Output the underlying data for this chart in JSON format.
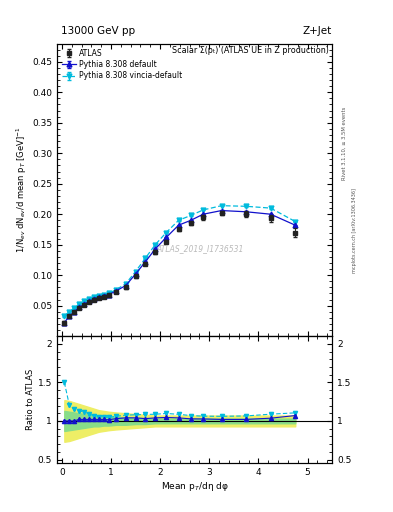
{
  "title_left": "13000 GeV pp",
  "title_right": "Z+Jet",
  "right_label": "Rivet 3.1.10, ≥ 3.5M events",
  "right_label2": "mcplots.cern.ch [arXiv:1306.3436]",
  "plot_title": "Scalar Σ(pₜ) (ATLAS UE in Z production)",
  "ylabel_main": "1/N$_{ev}$ dN$_{ev}$/d mean p$_T$ [GeV]$^{-1}$",
  "ylabel_ratio": "Ratio to ATLAS",
  "xlabel": "Mean p$_{T}$/dη dφ",
  "watermark": "ATLAS_2019_I1736531",
  "ylim_main": [
    0.0,
    0.48
  ],
  "ylim_ratio": [
    0.45,
    2.1
  ],
  "xlim": [
    -0.1,
    5.5
  ],
  "atlas_x": [
    0.05,
    0.15,
    0.25,
    0.35,
    0.45,
    0.55,
    0.65,
    0.75,
    0.85,
    0.95,
    1.1,
    1.3,
    1.5,
    1.7,
    1.9,
    2.125,
    2.375,
    2.625,
    2.875,
    3.25,
    3.75,
    4.25,
    4.75
  ],
  "atlas_y": [
    0.022,
    0.033,
    0.04,
    0.046,
    0.051,
    0.056,
    0.06,
    0.063,
    0.065,
    0.067,
    0.072,
    0.08,
    0.098,
    0.118,
    0.138,
    0.155,
    0.175,
    0.185,
    0.195,
    0.202,
    0.2,
    0.193,
    0.17
  ],
  "atlas_yerr": [
    0.003,
    0.002,
    0.002,
    0.002,
    0.002,
    0.002,
    0.002,
    0.002,
    0.002,
    0.002,
    0.002,
    0.002,
    0.002,
    0.002,
    0.003,
    0.003,
    0.003,
    0.003,
    0.004,
    0.004,
    0.005,
    0.006,
    0.007
  ],
  "py8def_x": [
    0.05,
    0.15,
    0.25,
    0.35,
    0.45,
    0.55,
    0.65,
    0.75,
    0.85,
    0.95,
    1.1,
    1.3,
    1.5,
    1.7,
    1.9,
    2.125,
    2.375,
    2.625,
    2.875,
    3.25,
    3.75,
    4.25,
    4.75
  ],
  "py8def_y": [
    0.022,
    0.033,
    0.04,
    0.047,
    0.052,
    0.057,
    0.061,
    0.064,
    0.066,
    0.068,
    0.074,
    0.083,
    0.102,
    0.122,
    0.143,
    0.162,
    0.182,
    0.19,
    0.2,
    0.206,
    0.204,
    0.2,
    0.182
  ],
  "py8def_yerr": [
    0.0008,
    0.0008,
    0.0008,
    0.0008,
    0.0008,
    0.0008,
    0.0008,
    0.0008,
    0.0008,
    0.0008,
    0.0008,
    0.0008,
    0.0008,
    0.0008,
    0.0008,
    0.0008,
    0.0008,
    0.0008,
    0.0008,
    0.0008,
    0.0008,
    0.0008,
    0.0008
  ],
  "py8vin_x": [
    0.05,
    0.15,
    0.25,
    0.35,
    0.45,
    0.55,
    0.65,
    0.75,
    0.85,
    0.95,
    1.1,
    1.3,
    1.5,
    1.7,
    1.9,
    2.125,
    2.375,
    2.625,
    2.875,
    3.25,
    3.75,
    4.25,
    4.75
  ],
  "py8vin_y": [
    0.033,
    0.04,
    0.046,
    0.052,
    0.057,
    0.061,
    0.064,
    0.066,
    0.068,
    0.07,
    0.076,
    0.086,
    0.106,
    0.128,
    0.15,
    0.17,
    0.19,
    0.198,
    0.207,
    0.214,
    0.213,
    0.21,
    0.188
  ],
  "py8vin_yerr": [
    0.0008,
    0.0008,
    0.0008,
    0.0008,
    0.0008,
    0.0008,
    0.0008,
    0.0008,
    0.0008,
    0.0008,
    0.0008,
    0.0008,
    0.0008,
    0.0008,
    0.0008,
    0.0008,
    0.0008,
    0.0008,
    0.0008,
    0.0008,
    0.0008,
    0.0008,
    0.0008
  ],
  "ratio_x": [
    0.05,
    0.15,
    0.25,
    0.35,
    0.45,
    0.55,
    0.65,
    0.75,
    0.85,
    0.95,
    1.1,
    1.3,
    1.5,
    1.7,
    1.9,
    2.125,
    2.375,
    2.625,
    2.875,
    3.25,
    3.75,
    4.25,
    4.75
  ],
  "ratio_py8def_y": [
    1.0,
    1.0,
    1.0,
    1.02,
    1.02,
    1.02,
    1.02,
    1.02,
    1.02,
    1.015,
    1.03,
    1.04,
    1.04,
    1.03,
    1.04,
    1.045,
    1.04,
    1.027,
    1.026,
    1.02,
    1.02,
    1.036,
    1.07
  ],
  "ratio_py8vin_y": [
    1.5,
    1.21,
    1.15,
    1.13,
    1.12,
    1.09,
    1.07,
    1.05,
    1.05,
    1.045,
    1.06,
    1.075,
    1.08,
    1.085,
    1.087,
    1.097,
    1.086,
    1.07,
    1.062,
    1.06,
    1.065,
    1.088,
    1.105
  ],
  "ratio_py8def_err": [
    0.015,
    0.012,
    0.01,
    0.009,
    0.008,
    0.008,
    0.007,
    0.007,
    0.007,
    0.007,
    0.006,
    0.006,
    0.006,
    0.006,
    0.006,
    0.006,
    0.005,
    0.005,
    0.005,
    0.005,
    0.006,
    0.007,
    0.009
  ],
  "ratio_py8vin_err": [
    0.015,
    0.012,
    0.01,
    0.009,
    0.008,
    0.008,
    0.007,
    0.007,
    0.007,
    0.007,
    0.006,
    0.006,
    0.006,
    0.006,
    0.006,
    0.006,
    0.005,
    0.005,
    0.005,
    0.005,
    0.006,
    0.007,
    0.009
  ],
  "ratio_green_lo": [
    0.87,
    0.88,
    0.89,
    0.9,
    0.91,
    0.92,
    0.93,
    0.93,
    0.94,
    0.94,
    0.95,
    0.95,
    0.96,
    0.96,
    0.97,
    0.97,
    0.97,
    0.97,
    0.97,
    0.97,
    0.97,
    0.97,
    0.97
  ],
  "ratio_green_hi": [
    1.13,
    1.12,
    1.11,
    1.1,
    1.09,
    1.08,
    1.07,
    1.07,
    1.06,
    1.06,
    1.05,
    1.05,
    1.04,
    1.04,
    1.03,
    1.03,
    1.03,
    1.03,
    1.03,
    1.03,
    1.03,
    1.03,
    1.03
  ],
  "ratio_yellow_lo": [
    0.73,
    0.74,
    0.76,
    0.78,
    0.8,
    0.82,
    0.84,
    0.86,
    0.87,
    0.88,
    0.89,
    0.9,
    0.91,
    0.92,
    0.93,
    0.93,
    0.93,
    0.93,
    0.93,
    0.93,
    0.93,
    0.93,
    0.93
  ],
  "ratio_yellow_hi": [
    1.27,
    1.26,
    1.24,
    1.22,
    1.2,
    1.18,
    1.16,
    1.14,
    1.13,
    1.12,
    1.11,
    1.1,
    1.09,
    1.08,
    1.07,
    1.07,
    1.07,
    1.07,
    1.07,
    1.07,
    1.07,
    1.07,
    1.07
  ],
  "color_atlas": "#222222",
  "color_py8def": "#1111cc",
  "color_py8vin": "#00bbdd",
  "color_green": "#88dd88",
  "color_yellow": "#eeee66",
  "yticks_main": [
    0.05,
    0.1,
    0.15,
    0.2,
    0.25,
    0.3,
    0.35,
    0.4,
    0.45
  ],
  "yticks_ratio": [
    0.5,
    1.0,
    1.5,
    2.0
  ],
  "xticks_main": [
    0,
    1,
    2,
    3,
    4,
    5
  ],
  "xticks_ratio": [
    0,
    1,
    2,
    3,
    4,
    5
  ]
}
